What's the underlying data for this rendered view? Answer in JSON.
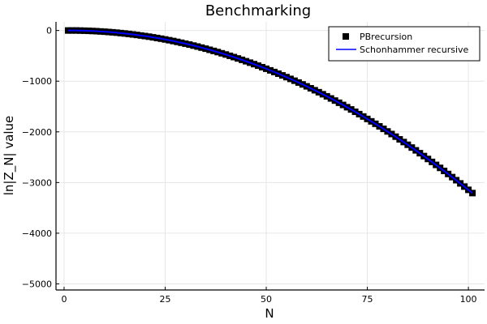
{
  "chart_data": {
    "type": "scatter",
    "title": "Benchmarking",
    "xlabel": "N",
    "ylabel": "ln|Z_N| value",
    "xlim": [
      -2,
      104
    ],
    "ylim": [
      -5120,
      170
    ],
    "xticks": [
      0,
      25,
      50,
      75,
      100
    ],
    "xtick_labels": [
      "0",
      "25",
      "50",
      "75",
      "100"
    ],
    "yticks": [
      0,
      -1000,
      -2000,
      -3000,
      -4000,
      -5000
    ],
    "ytick_labels": [
      "0",
      "−1000",
      "−2000",
      "−3000",
      "−4000",
      "−5000"
    ],
    "grid": true,
    "legend_position": "top-right",
    "series": [
      {
        "name": "PBrecursion",
        "kind": "scatter",
        "marker": "square",
        "color": "#000000",
        "x": [
          1,
          2,
          3,
          4,
          5,
          6,
          7,
          8,
          9,
          10,
          11,
          12,
          13,
          14,
          15,
          16,
          17,
          18,
          19,
          20,
          21,
          22,
          23,
          24,
          25,
          26,
          27,
          28,
          29,
          30,
          31,
          32,
          33,
          34,
          35,
          36,
          37,
          38,
          39,
          40,
          41,
          42,
          43,
          44,
          45,
          46,
          47,
          48,
          49,
          50,
          51,
          52,
          53,
          54,
          55,
          56,
          57,
          58,
          59,
          60,
          61,
          62,
          63,
          64,
          65,
          66,
          67,
          68,
          69,
          70,
          71,
          72,
          73,
          74,
          75,
          76,
          77,
          78,
          79,
          80,
          81,
          82,
          83,
          84,
          85,
          86,
          87,
          88,
          89,
          90,
          91,
          92,
          93,
          94,
          95,
          96,
          97,
          98,
          99,
          100,
          101
        ],
        "y": [
          0,
          0,
          0,
          -2,
          -4,
          -7,
          -10,
          -14,
          -19,
          -24,
          -30,
          -36,
          -43,
          -51,
          -59,
          -68,
          -78,
          -88,
          -99,
          -110,
          -122,
          -135,
          -148,
          -162,
          -177,
          -192,
          -208,
          -225,
          -242,
          -260,
          -278,
          -298,
          -317,
          -338,
          -359,
          -381,
          -403,
          -426,
          -450,
          -474,
          -500,
          -525,
          -552,
          -579,
          -607,
          -635,
          -664,
          -694,
          -724,
          -755,
          -787,
          -819,
          -852,
          -886,
          -920,
          -955,
          -991,
          -1027,
          -1064,
          -1102,
          -1140,
          -1179,
          -1218,
          -1258,
          -1299,
          -1341,
          -1383,
          -1426,
          -1469,
          -1514,
          -1558,
          -1604,
          -1650,
          -1697,
          -1745,
          -1793,
          -1841,
          -1891,
          -1941,
          -1992,
          -2043,
          -2095,
          -2148,
          -2201,
          -2255,
          -2310,
          -2365,
          -2421,
          -2478,
          -2535,
          -2593,
          -2652,
          -2711,
          -2771,
          -2831,
          -2893,
          -2954,
          -3017,
          -3080,
          -3144,
          -3208
        ]
      },
      {
        "name": "Schonhammer recursive",
        "kind": "line",
        "color": "#0000ff",
        "x": [
          1,
          2,
          3,
          4,
          5,
          6,
          7,
          8,
          9,
          10,
          11,
          12,
          13,
          14,
          15,
          16,
          17,
          18,
          19,
          20,
          21,
          22,
          23,
          24,
          25,
          26,
          27,
          28,
          29,
          30,
          31,
          32,
          33,
          34,
          35,
          36,
          37,
          38,
          39,
          40,
          41,
          42,
          43,
          44,
          45,
          46,
          47,
          48,
          49,
          50,
          51,
          52,
          53,
          54,
          55,
          56,
          57,
          58,
          59,
          60,
          61,
          62,
          63,
          64,
          65,
          66,
          67,
          68,
          69,
          70,
          71,
          72,
          73,
          74,
          75,
          76,
          77,
          78,
          79,
          80,
          81,
          82,
          83,
          84,
          85,
          86,
          87,
          88,
          89,
          90,
          91,
          92,
          93,
          94,
          95,
          96,
          97,
          98,
          99,
          100,
          101
        ],
        "y": [
          0,
          0,
          0,
          -2,
          -4,
          -7,
          -10,
          -14,
          -19,
          -24,
          -30,
          -36,
          -43,
          -51,
          -59,
          -68,
          -78,
          -88,
          -99,
          -110,
          -122,
          -135,
          -148,
          -162,
          -177,
          -192,
          -208,
          -225,
          -242,
          -260,
          -278,
          -298,
          -317,
          -338,
          -359,
          -381,
          -403,
          -426,
          -450,
          -474,
          -500,
          -525,
          -552,
          -579,
          -607,
          -635,
          -664,
          -694,
          -724,
          -755,
          -787,
          -819,
          -852,
          -886,
          -920,
          -955,
          -991,
          -1027,
          -1064,
          -1102,
          -1140,
          -1179,
          -1218,
          -1258,
          -1299,
          -1341,
          -1383,
          -1426,
          -1469,
          -1514,
          -1558,
          -1604,
          -1650,
          -1697,
          -1745,
          -1793,
          -1841,
          -1891,
          -1941,
          -1992,
          -2043,
          -2095,
          -2148,
          -2201,
          -2255,
          -2310,
          -2365,
          -2421,
          -2478,
          -2535,
          -2593,
          -2652,
          -2711,
          -2771,
          -2831,
          -2893,
          -2954,
          -3017,
          -3080,
          -3144,
          -3208
        ]
      }
    ]
  }
}
